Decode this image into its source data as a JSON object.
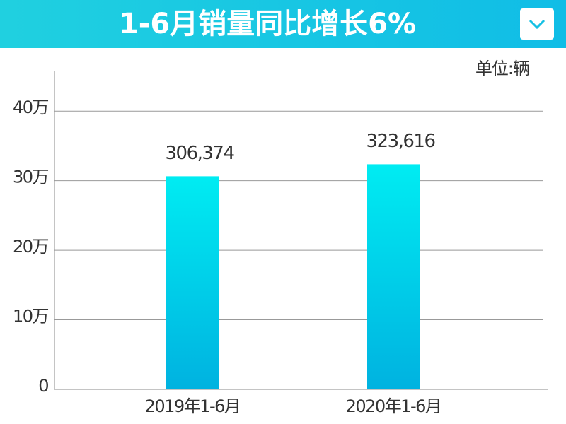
{
  "chart_data": {
    "type": "bar",
    "title": "1-6月销量同比增长6%",
    "unit_label": "单位:辆",
    "categories": [
      "2019年1-6月",
      "2020年1-6月"
    ],
    "values": [
      306374,
      323616
    ],
    "value_labels": [
      "306,374",
      "323,616"
    ],
    "ylim": [
      0,
      450000
    ],
    "yticks": [
      0,
      {
        "value": 100000,
        "label": "10万"
      },
      {
        "value": 200000,
        "label": "20万"
      },
      {
        "value": 300000,
        "label": "30万"
      },
      {
        "value": 400000,
        "label": "40万"
      }
    ],
    "grid": true
  }
}
